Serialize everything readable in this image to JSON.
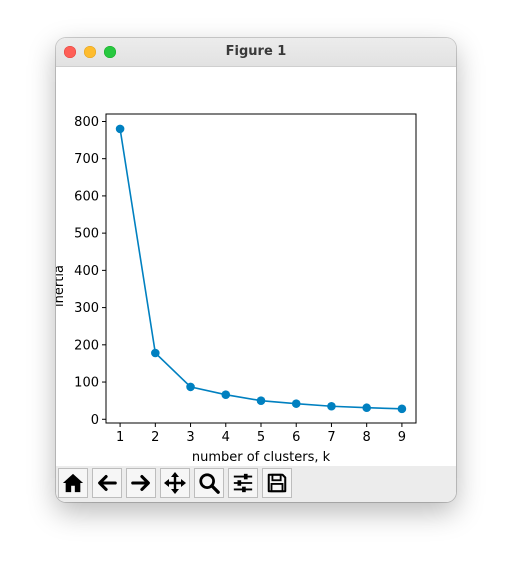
{
  "window": {
    "title": "Figure 1"
  },
  "toolbar": {
    "buttons": [
      {
        "name": "home-button",
        "icon": "home-icon"
      },
      {
        "name": "back-button",
        "icon": "arrow-left-icon"
      },
      {
        "name": "forward-button",
        "icon": "arrow-right-icon"
      },
      {
        "name": "pan-button",
        "icon": "move-icon"
      },
      {
        "name": "zoom-button",
        "icon": "search-icon"
      },
      {
        "name": "configure-subplots-button",
        "icon": "sliders-icon"
      },
      {
        "name": "save-button",
        "icon": "save-icon"
      }
    ]
  },
  "chart_data": {
    "type": "line",
    "title": "",
    "xlabel": "number of clusters, k",
    "ylabel": "inertia",
    "x": [
      1,
      2,
      3,
      4,
      5,
      6,
      7,
      8,
      9
    ],
    "series": [
      {
        "values": [
          780,
          178,
          87,
          66,
          50,
          42,
          35,
          31,
          28
        ],
        "color": "#0080c0",
        "marker": "circle"
      }
    ],
    "xticks": [
      1,
      2,
      3,
      4,
      5,
      6,
      7,
      8,
      9
    ],
    "yticks": [
      0,
      100,
      200,
      300,
      400,
      500,
      600,
      700,
      800
    ],
    "xlim": [
      0.6,
      9.4
    ],
    "ylim": [
      -10,
      820
    ],
    "grid": false
  }
}
